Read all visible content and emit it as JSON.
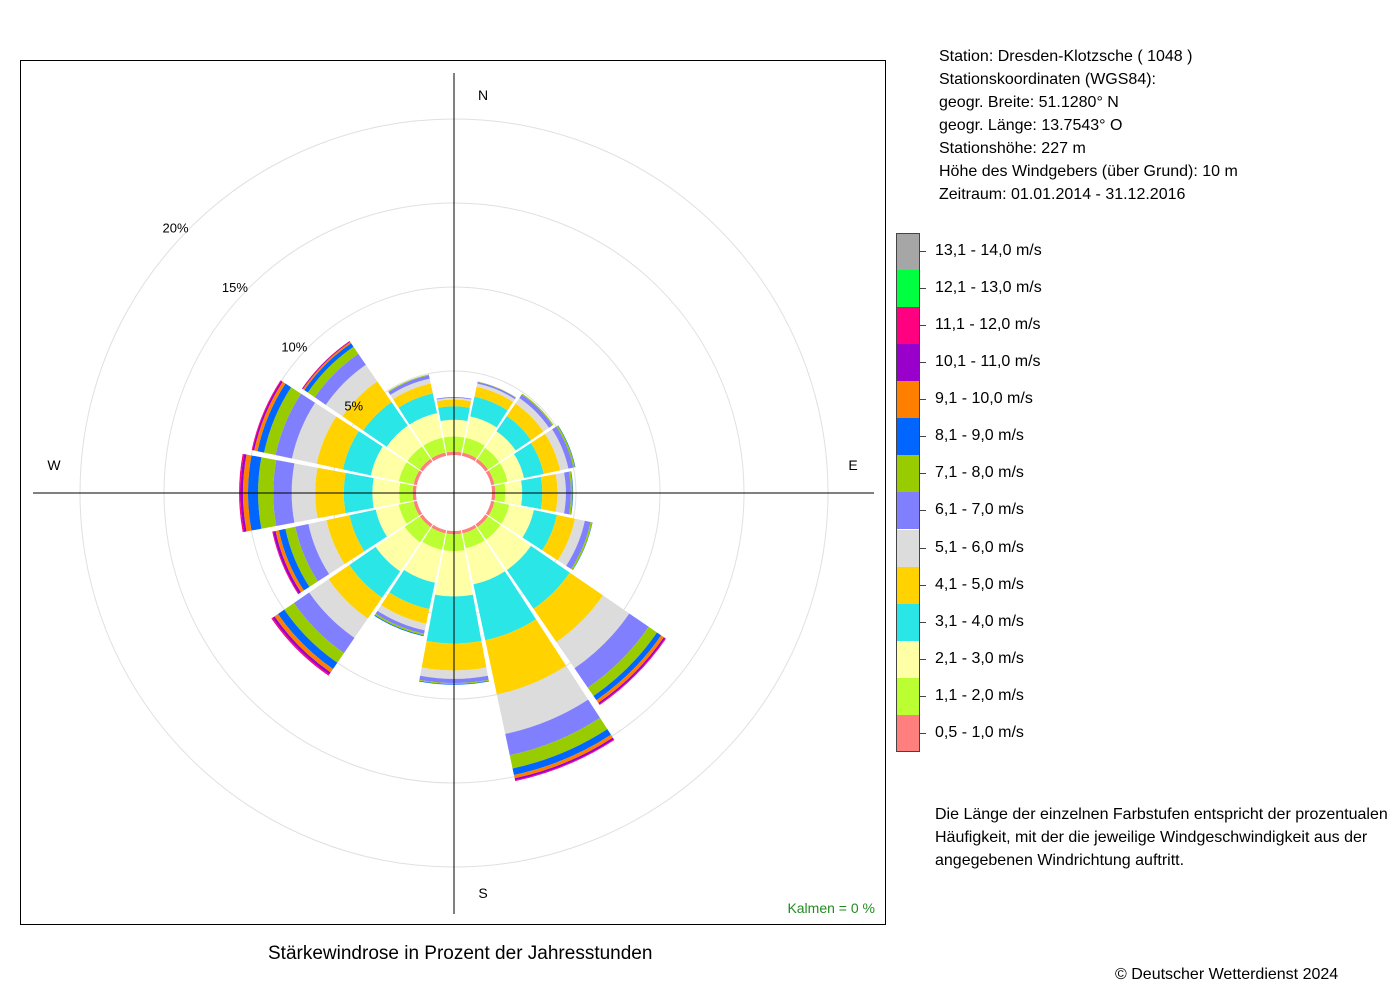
{
  "station": {
    "line1": "Station:  Dresden-Klotzsche  ( 1048 )",
    "line2": "Stationskoordinaten (WGS84):",
    "line3": "geogr. Breite: 51.1280° N",
    "line4": "geogr. Länge: 13.7543° O",
    "line5": "Stationshöhe: 227 m",
    "line6": "Höhe des Windgebers (über Grund): 10 m",
    "line7": "Zeitraum: 01.01.2014 - 31.12.2016"
  },
  "note": {
    "line1": "Die Länge der einzelnen Farbstufen entspricht der prozentualen",
    "line2": "Häufigkeit, mit der die jeweilige Windgeschwindigkeit aus der",
    "line3": "angegebenen Windrichtung auftritt."
  },
  "title": "Stärkewindrose in Prozent der Jahresstunden",
  "copyright": "© Deutscher Wetterdienst  2024",
  "calm_label": "Kalmen  =  0 %",
  "chart_data": {
    "type": "wind-rose",
    "title": "Stärkewindrose in Prozent der Jahresstunden",
    "directions": [
      "N",
      "NNO",
      "NO",
      "ONO",
      "O",
      "OSO",
      "SO",
      "SSO",
      "S",
      "SSW",
      "SW",
      "WSW",
      "W",
      "WNW",
      "NW",
      "NNW"
    ],
    "direction_angles_deg": [
      0,
      22.5,
      45,
      67.5,
      90,
      112.5,
      135,
      157.5,
      180,
      202.5,
      225,
      247.5,
      270,
      292.5,
      315,
      337.5
    ],
    "compass_labels": [
      "N",
      "E",
      "S",
      "W"
    ],
    "radial_ticks": [
      {
        "value": 5,
        "label": "5%"
      },
      {
        "value": 10,
        "label": "10%"
      },
      {
        "value": 15,
        "label": "15%"
      },
      {
        "value": 20,
        "label": "20%"
      }
    ],
    "calm_percent": 0,
    "speed_classes": [
      {
        "label": "0,5 - 1,0 m/s",
        "color": "#ff7f7f"
      },
      {
        "label": "1,1 - 2,0 m/s",
        "color": "#bbff33"
      },
      {
        "label": "2,1 - 3,0 m/s",
        "color": "#ffffa6"
      },
      {
        "label": "3,1 - 4,0 m/s",
        "color": "#2ae6e6"
      },
      {
        "label": "4,1 - 5,0 m/s",
        "color": "#ffd200"
      },
      {
        "label": "5,1 - 6,0 m/s",
        "color": "#dcdcdc"
      },
      {
        "label": "6,1 - 7,0 m/s",
        "color": "#8080ff"
      },
      {
        "label": "7,1 - 8,0 m/s",
        "color": "#99cc00"
      },
      {
        "label": "8,1 - 9,0 m/s",
        "color": "#0066ff"
      },
      {
        "label": "9,1 - 10,0 m/s",
        "color": "#ff8000"
      },
      {
        "label": "10,1 - 11,0 m/s",
        "color": "#9900cc"
      },
      {
        "label": "11,1 - 12,0 m/s",
        "color": "#ff0080"
      },
      {
        "label": "12,1 - 13,0 m/s",
        "color": "#00ff40"
      },
      {
        "label": "13,1 - 14,0 m/s",
        "color": "#a6a6a6"
      }
    ],
    "series": [
      {
        "direction": "N",
        "values": [
          0.2,
          0.9,
          1.0,
          0.8,
          0.4,
          0.1,
          0.05,
          0,
          0,
          0,
          0,
          0,
          0,
          0
        ]
      },
      {
        "direction": "NNO",
        "values": [
          0.2,
          0.9,
          1.3,
          1.2,
          0.6,
          0.2,
          0.1,
          0.02,
          0,
          0,
          0,
          0,
          0,
          0
        ]
      },
      {
        "direction": "NO",
        "values": [
          0.2,
          0.8,
          1.2,
          1.1,
          0.9,
          0.4,
          0.25,
          0.07,
          0,
          0,
          0,
          0,
          0,
          0
        ]
      },
      {
        "direction": "ONO",
        "values": [
          0.2,
          0.8,
          1.0,
          1.2,
          1.0,
          0.5,
          0.3,
          0.1,
          0.03,
          0,
          0,
          0,
          0,
          0
        ]
      },
      {
        "direction": "O",
        "values": [
          0.2,
          0.6,
          1.0,
          1.2,
          0.9,
          0.5,
          0.3,
          0.1,
          0.03,
          0,
          0,
          0,
          0,
          0
        ]
      },
      {
        "direction": "OSO",
        "values": [
          0.2,
          0.9,
          1.5,
          1.4,
          1.1,
          0.6,
          0.35,
          0.1,
          0.02,
          0,
          0,
          0,
          0,
          0
        ]
      },
      {
        "direction": "SO",
        "values": [
          0.2,
          0.9,
          2.2,
          2.8,
          2.4,
          1.9,
          1.4,
          0.6,
          0.3,
          0.2,
          0.1,
          0.05,
          0,
          0
        ]
      },
      {
        "direction": "SSO",
        "values": [
          0.2,
          0.9,
          2.2,
          3.4,
          3.3,
          2.4,
          1.3,
          0.8,
          0.4,
          0.2,
          0.12,
          0.05,
          0,
          0
        ]
      },
      {
        "direction": "S",
        "values": [
          0.2,
          1.0,
          2.7,
          2.8,
          1.6,
          0.5,
          0.25,
          0.06,
          0.04,
          0,
          0,
          0,
          0,
          0
        ]
      },
      {
        "direction": "SSW",
        "values": [
          0.2,
          1.0,
          2.0,
          1.6,
          0.9,
          0.4,
          0.2,
          0.1,
          0.05,
          0,
          0,
          0,
          0,
          0
        ]
      },
      {
        "direction": "SW",
        "values": [
          0.2,
          1.1,
          2.1,
          1.9,
          1.5,
          1.4,
          1.1,
          0.7,
          0.45,
          0.25,
          0.15,
          0.08,
          0,
          0
        ]
      },
      {
        "direction": "WSW",
        "values": [
          0.2,
          0.9,
          1.4,
          1.6,
          1.4,
          1.1,
          0.8,
          0.6,
          0.4,
          0.2,
          0.15,
          0.05,
          0,
          0
        ]
      },
      {
        "direction": "W",
        "values": [
          0.2,
          0.8,
          1.6,
          1.7,
          1.7,
          1.4,
          1.1,
          0.9,
          0.6,
          0.3,
          0.15,
          0.08,
          0,
          0
        ]
      },
      {
        "direction": "WNW",
        "values": [
          0.2,
          0.9,
          1.7,
          1.7,
          1.6,
          1.5,
          1.0,
          0.7,
          0.4,
          0.2,
          0.1,
          0.05,
          0,
          0
        ]
      },
      {
        "direction": "NW",
        "values": [
          0.2,
          0.9,
          1.5,
          1.7,
          1.5,
          1.2,
          0.8,
          0.5,
          0.25,
          0.1,
          0.05,
          0.02,
          0,
          0
        ]
      },
      {
        "direction": "NNW",
        "values": [
          0.2,
          0.9,
          1.5,
          1.2,
          0.6,
          0.3,
          0.2,
          0.05,
          0,
          0,
          0,
          0,
          0,
          0
        ]
      }
    ]
  }
}
